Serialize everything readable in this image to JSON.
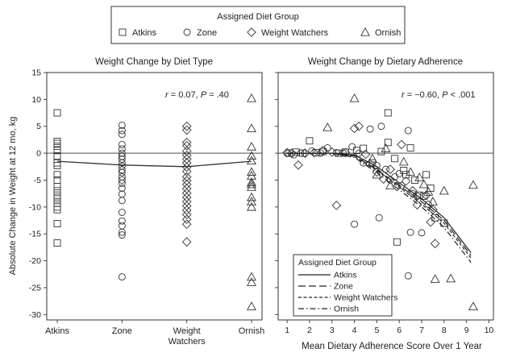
{
  "legend": {
    "title": "Assigned Diet Group",
    "items": [
      {
        "label": "Atkins",
        "symbol": "square"
      },
      {
        "label": "Zone",
        "symbol": "circle"
      },
      {
        "label": "Weight Watchers",
        "symbol": "diamond"
      },
      {
        "label": "Ornish",
        "symbol": "triangle"
      }
    ]
  },
  "chart_data": [
    {
      "type": "scatter",
      "title": "Weight Change by Diet Type",
      "ylabel": "Absolute Change in Weight at 12 mo, kg",
      "ylim": [
        -31,
        15
      ],
      "yticks": [
        15,
        10,
        5,
        0,
        -5,
        -10,
        -15,
        -20,
        -25,
        -30
      ],
      "categories": [
        "Atkins",
        "Zone",
        "Weight\nWatchers",
        "Ornish"
      ],
      "annotation": {
        "r_label": "r",
        "r_value": " = 0.07, ",
        "p_label": "P",
        "p_value": " = .40"
      },
      "mean_line": [
        -1.5,
        -2.2,
        -2.5,
        -1.5
      ],
      "series": [
        {
          "name": "Atkins",
          "symbol": "square",
          "values": [
            7.5,
            2.2,
            1.8,
            1.3,
            0.5,
            -0.5,
            -1.8,
            -2.3,
            -4.0,
            -5.0,
            -6.2,
            -7.0,
            -7.8,
            -8.5,
            -9.3,
            -10.0,
            -10.5,
            -13.1,
            -16.7
          ]
        },
        {
          "name": "Zone",
          "symbol": "circle",
          "values": [
            5.2,
            4.2,
            3.5,
            1.6,
            0.8,
            0.0,
            -0.6,
            -1.1,
            -1.8,
            -2.4,
            -3.1,
            -3.6,
            -4.4,
            -5.0,
            -5.6,
            -6.5,
            -7.6,
            -8.8,
            -11.0,
            -12.6,
            -13.5,
            -14.7,
            -15.2,
            -23.0
          ]
        },
        {
          "name": "Weight Watchers",
          "symbol": "diamond",
          "values": [
            5.0,
            4.3,
            2.0,
            1.4,
            0.4,
            -0.4,
            -1.1,
            -1.8,
            -2.6,
            -3.4,
            -4.4,
            -5.1,
            -5.8,
            -6.6,
            -7.4,
            -8.2,
            -9.0,
            -9.8,
            -10.6,
            -11.4,
            -12.3,
            -13.2,
            -16.5
          ]
        },
        {
          "name": "Ornish",
          "symbol": "triangle",
          "values": [
            10.2,
            4.6,
            1.2,
            -0.5,
            -1.4,
            -3.5,
            -4.2,
            -5.4,
            -5.8,
            -6.3,
            -8.2,
            -9.0,
            -10.0,
            -23.0,
            -24.0,
            -28.5
          ]
        }
      ]
    },
    {
      "type": "scatter",
      "title": "Weight Change by Dietary Adherence",
      "xlabel": "Mean Dietary Adherence Score Over 1 Year",
      "xlim": [
        0.6,
        10.2
      ],
      "xticks": [
        1,
        2,
        3,
        4,
        5,
        6,
        7,
        8,
        9,
        10
      ],
      "ylim": [
        -31,
        15
      ],
      "annotation": {
        "r_label": "r",
        "r_value": " = −0.60, ",
        "p_label": "P",
        "p_value": " < .001"
      },
      "line_legend": {
        "title": "Assigned Diet Group",
        "items": [
          {
            "label": "Atkins",
            "dash": "solid"
          },
          {
            "label": "Zone",
            "dash": "longdash"
          },
          {
            "label": "Weight Watchers",
            "dash": "shortdash"
          },
          {
            "label": "Ornish",
            "dash": "dashdot"
          }
        ]
      },
      "fit_lines": [
        {
          "name": "Atkins",
          "points": [
            [
              1.0,
              0.0
            ],
            [
              3.0,
              0.0
            ],
            [
              4.0,
              -0.3
            ],
            [
              5.0,
              -2.5
            ],
            [
              6.0,
              -5.5
            ],
            [
              7.0,
              -8.5
            ],
            [
              8.0,
              -12.0
            ],
            [
              9.2,
              -18.5
            ]
          ]
        },
        {
          "name": "Zone",
          "points": [
            [
              1.0,
              0.0
            ],
            [
              3.0,
              0.0
            ],
            [
              4.0,
              -0.5
            ],
            [
              5.0,
              -3.0
            ],
            [
              6.0,
              -6.0
            ],
            [
              7.0,
              -9.0
            ],
            [
              8.0,
              -12.5
            ],
            [
              9.2,
              -19.0
            ]
          ]
        },
        {
          "name": "Weight Watchers",
          "points": [
            [
              1.0,
              0.0
            ],
            [
              3.0,
              0.0
            ],
            [
              4.0,
              -0.6
            ],
            [
              5.0,
              -3.2
            ],
            [
              6.0,
              -6.3
            ],
            [
              7.0,
              -9.5
            ],
            [
              8.0,
              -13.0
            ],
            [
              9.2,
              -19.5
            ]
          ]
        },
        {
          "name": "Ornish",
          "points": [
            [
              1.0,
              0.0
            ],
            [
              3.0,
              0.0
            ],
            [
              4.0,
              -0.8
            ],
            [
              5.0,
              -3.6
            ],
            [
              6.0,
              -6.8
            ],
            [
              7.0,
              -10.0
            ],
            [
              8.0,
              -13.8
            ],
            [
              9.2,
              -20.3
            ]
          ]
        }
      ],
      "series": [
        {
          "name": "Atkins",
          "symbol": "square",
          "points": [
            [
              1.1,
              0.0
            ],
            [
              1.4,
              0.2
            ],
            [
              1.7,
              0.0
            ],
            [
              2.0,
              2.3
            ],
            [
              2.3,
              0.1
            ],
            [
              2.6,
              0.3
            ],
            [
              3.3,
              0.0
            ],
            [
              3.6,
              0.2
            ],
            [
              4.1,
              0.5
            ],
            [
              4.4,
              0.9
            ],
            [
              4.8,
              -1.8
            ],
            [
              5.2,
              0.3
            ],
            [
              5.5,
              7.5
            ],
            [
              5.5,
              2.0
            ],
            [
              5.8,
              -1.0
            ],
            [
              6.2,
              -3.2
            ],
            [
              6.3,
              -4.0
            ],
            [
              6.5,
              1.0
            ],
            [
              6.7,
              -5.0
            ],
            [
              6.9,
              -7.8
            ],
            [
              5.9,
              -16.5
            ],
            [
              7.1,
              -8.0
            ],
            [
              7.4,
              -6.5
            ],
            [
              7.6,
              -12.0
            ],
            [
              8.0,
              -13.0
            ],
            [
              7.2,
              -4.0
            ]
          ]
        },
        {
          "name": "Zone",
          "symbol": "circle",
          "points": [
            [
              1.0,
              0.0
            ],
            [
              1.3,
              -0.3
            ],
            [
              1.6,
              0.0
            ],
            [
              2.1,
              0.4
            ],
            [
              2.5,
              0.0
            ],
            [
              2.8,
              1.0
            ],
            [
              3.2,
              0.1
            ],
            [
              3.5,
              0.0
            ],
            [
              3.9,
              1.2
            ],
            [
              4.2,
              0.0
            ],
            [
              4.4,
              -1.8
            ],
            [
              4.7,
              4.5
            ],
            [
              5.2,
              5.0
            ],
            [
              5.0,
              -2.3
            ],
            [
              5.4,
              -3.0
            ],
            [
              5.6,
              -5.0
            ],
            [
              5.8,
              -4.4
            ],
            [
              6.0,
              -3.8
            ],
            [
              6.1,
              -6.0
            ],
            [
              6.4,
              4.2
            ],
            [
              6.6,
              -7.5
            ],
            [
              6.8,
              -8.0
            ],
            [
              7.0,
              -14.8
            ],
            [
              7.3,
              -9.5
            ],
            [
              6.5,
              -14.7
            ],
            [
              6.4,
              -22.8
            ],
            [
              4.0,
              -13.2
            ],
            [
              5.1,
              -12.0
            ]
          ]
        },
        {
          "name": "Weight Watchers",
          "symbol": "diamond",
          "points": [
            [
              1.0,
              0.1
            ],
            [
              1.2,
              0.0
            ],
            [
              1.5,
              -2.2
            ],
            [
              1.8,
              0.0
            ],
            [
              2.2,
              0.1
            ],
            [
              2.6,
              0.5
            ],
            [
              3.0,
              0.2
            ],
            [
              3.2,
              -9.7
            ],
            [
              3.6,
              0.1
            ],
            [
              4.0,
              4.6
            ],
            [
              4.2,
              5.0
            ],
            [
              4.5,
              -0.2
            ],
            [
              4.7,
              -2.0
            ],
            [
              5.0,
              -3.5
            ],
            [
              5.3,
              -4.8
            ],
            [
              5.6,
              -3.0
            ],
            [
              5.9,
              -6.2
            ],
            [
              6.1,
              1.6
            ],
            [
              6.3,
              -5.2
            ],
            [
              6.6,
              -7.0
            ],
            [
              6.8,
              -9.6
            ],
            [
              7.2,
              -7.8
            ],
            [
              7.5,
              -10.5
            ],
            [
              7.4,
              -12.8
            ],
            [
              7.6,
              -16.8
            ]
          ]
        },
        {
          "name": "Ornish",
          "symbol": "triangle",
          "points": [
            [
              2.8,
              4.8
            ],
            [
              4.0,
              10.2
            ],
            [
              4.8,
              -1.0
            ],
            [
              5.4,
              0.9
            ],
            [
              6.2,
              -1.6
            ],
            [
              6.5,
              -3.5
            ],
            [
              6.9,
              -4.5
            ],
            [
              7.1,
              -5.8
            ],
            [
              7.3,
              -7.2
            ],
            [
              7.5,
              -9.0
            ],
            [
              7.6,
              -23.4
            ],
            [
              8.3,
              -23.3
            ],
            [
              8.0,
              -7.0
            ],
            [
              9.3,
              -5.9
            ],
            [
              9.3,
              -28.5
            ],
            [
              5.0,
              -4.0
            ],
            [
              5.6,
              -6.0
            ]
          ]
        }
      ]
    }
  ]
}
